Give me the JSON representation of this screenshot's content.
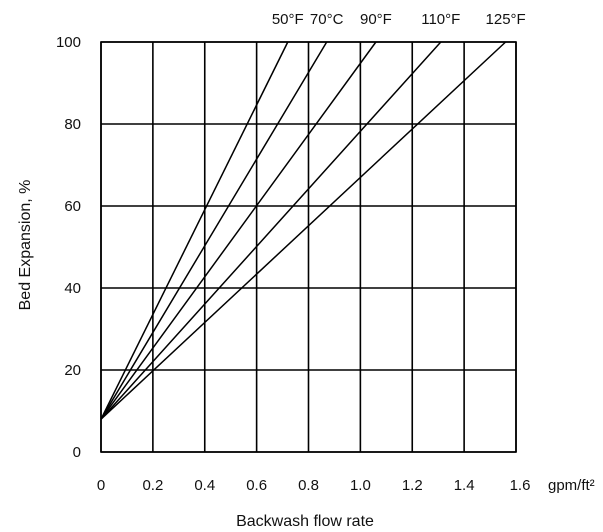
{
  "chart_data": {
    "type": "line",
    "title": "",
    "xlabel": "Backwash flow rate",
    "ylabel": "Bed Expansion, %",
    "x_unit": "gpm/ft²",
    "xlim": [
      0,
      1.6
    ],
    "ylim": [
      0,
      100
    ],
    "xticks": [
      {
        "value": 0,
        "label": "0"
      },
      {
        "value": 0.2,
        "label": "0.2"
      },
      {
        "value": 0.4,
        "label": "0.4"
      },
      {
        "value": 0.6,
        "label": "0.6"
      },
      {
        "value": 0.8,
        "label": "0.8"
      },
      {
        "value": 1.0,
        "label": "1.0"
      },
      {
        "value": 1.2,
        "label": "1.2"
      },
      {
        "value": 1.4,
        "label": "1.4"
      },
      {
        "value": 1.6,
        "label": "1.6"
      }
    ],
    "yticks": [
      {
        "value": 0,
        "label": "0"
      },
      {
        "value": 20,
        "label": "20"
      },
      {
        "value": 40,
        "label": "40"
      },
      {
        "value": 60,
        "label": "60"
      },
      {
        "value": 80,
        "label": "80"
      },
      {
        "value": 100,
        "label": "100"
      }
    ],
    "grid": true,
    "series": [
      {
        "name": "50°F",
        "x": [
          0,
          0.72
        ],
        "y": [
          8,
          100
        ]
      },
      {
        "name": "70°C",
        "x": [
          0,
          0.87
        ],
        "y": [
          8,
          100
        ]
      },
      {
        "name": "90°F",
        "x": [
          0,
          1.06
        ],
        "y": [
          8,
          100
        ]
      },
      {
        "name": "110°F",
        "x": [
          0,
          1.31
        ],
        "y": [
          8,
          100
        ]
      },
      {
        "name": "125°F",
        "x": [
          0,
          1.56
        ],
        "y": [
          8,
          100
        ]
      }
    ]
  }
}
